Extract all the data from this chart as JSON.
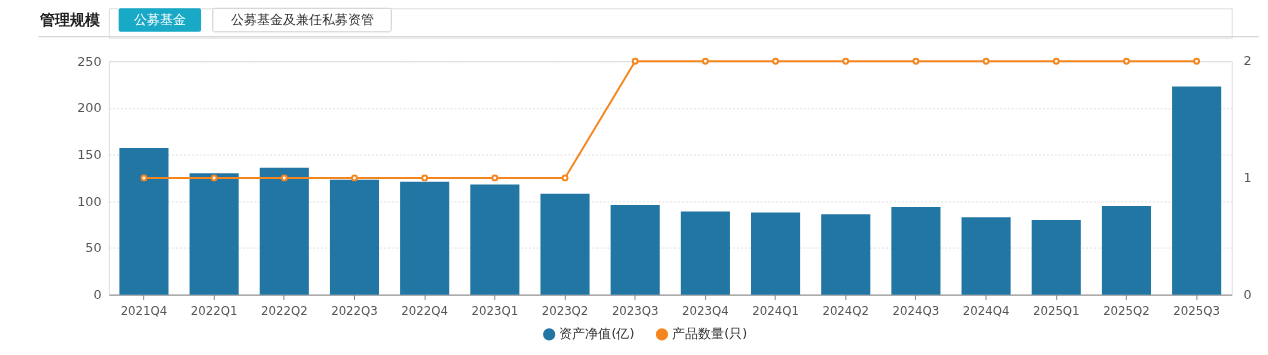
{
  "chart_data": {
    "type": "bar",
    "title": "管理规模",
    "annotations": [
      "公募基金",
      "公募基金及兼任私募资管"
    ],
    "categories": [
      "2021Q4",
      "2022Q1",
      "2022Q2",
      "2022Q3",
      "2022Q4",
      "2023Q1",
      "2023Q2",
      "2023Q3",
      "2023Q4",
      "2024Q1",
      "2024Q2",
      "2024Q3",
      "2024Q4",
      "2025Q1",
      "2025Q2",
      "2025Q3"
    ],
    "series": [
      {
        "name": "资产净值(亿)",
        "color": "#2276a3",
        "values": [
          157,
          130,
          136,
          123,
          121,
          118,
          108,
          96,
          89,
          88,
          86,
          94,
          83,
          80,
          95,
          223
        ]
      },
      {
        "name": "产品数量(只)",
        "color": "#f5861f",
        "type": "line",
        "axis": "y2",
        "values": [
          1,
          1,
          1,
          1,
          1,
          1,
          1,
          2,
          2,
          2,
          2,
          2,
          2,
          2,
          2,
          2
        ]
      }
    ],
    "ylim": [
      0,
      250
    ],
    "yticks": [
      0,
      50,
      100,
      150,
      200,
      250
    ],
    "y2lim": [
      0,
      2
    ],
    "y2ticks": [
      0,
      1,
      2
    ],
    "grid": "y",
    "legend": "bottom",
    "marker": "circle",
    "line_style": "solid"
  }
}
